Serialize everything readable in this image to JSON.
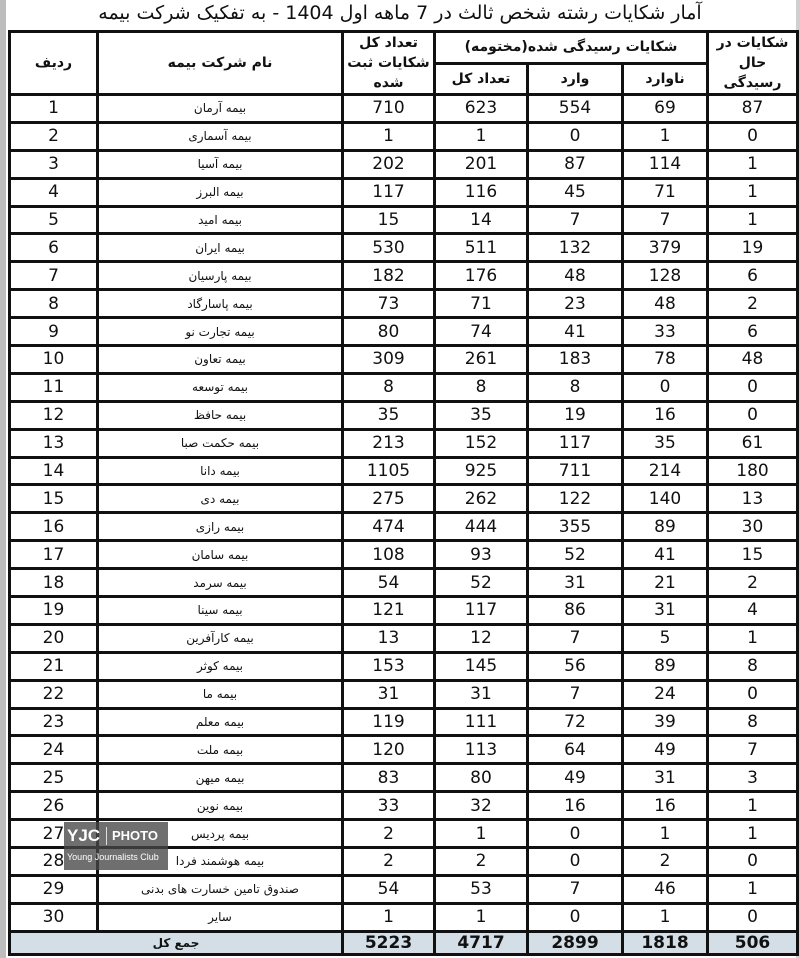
{
  "title": "آمار شکایات رشته شخص ثالث در 7 ماهه اول 1404 - به تفکیک شرکت بیمه",
  "headers": {
    "row_no": "ردیف",
    "company": "نام شرکت بیمه",
    "total": "تعداد کل شکایات ثبت شده",
    "closed_group": "شکایات رسیدگی شده(مختومه)",
    "closed_total": "تعداد کل",
    "valid": "وارد",
    "invalid": "ناوارد",
    "pending": "شکایات در حال رسیدگی"
  },
  "rows": [
    {
      "no": "1",
      "name": "بیمه آرمان",
      "total": "710",
      "closed": "623",
      "valid": "554",
      "invalid": "69",
      "pending": "87"
    },
    {
      "no": "2",
      "name": "بیمه آسماری",
      "total": "1",
      "closed": "1",
      "valid": "0",
      "invalid": "1",
      "pending": "0"
    },
    {
      "no": "3",
      "name": "بیمه آسیا",
      "total": "202",
      "closed": "201",
      "valid": "87",
      "invalid": "114",
      "pending": "1"
    },
    {
      "no": "4",
      "name": "بیمه البرز",
      "total": "117",
      "closed": "116",
      "valid": "45",
      "invalid": "71",
      "pending": "1"
    },
    {
      "no": "5",
      "name": "بیمه امید",
      "total": "15",
      "closed": "14",
      "valid": "7",
      "invalid": "7",
      "pending": "1"
    },
    {
      "no": "6",
      "name": "بیمه ایران",
      "total": "530",
      "closed": "511",
      "valid": "132",
      "invalid": "379",
      "pending": "19"
    },
    {
      "no": "7",
      "name": "بیمه پارسیان",
      "total": "182",
      "closed": "176",
      "valid": "48",
      "invalid": "128",
      "pending": "6"
    },
    {
      "no": "8",
      "name": "بیمه پاسارگاد",
      "total": "73",
      "closed": "71",
      "valid": "23",
      "invalid": "48",
      "pending": "2"
    },
    {
      "no": "9",
      "name": "بیمه تجارت نو",
      "total": "80",
      "closed": "74",
      "valid": "41",
      "invalid": "33",
      "pending": "6"
    },
    {
      "no": "10",
      "name": "بیمه تعاون",
      "total": "309",
      "closed": "261",
      "valid": "183",
      "invalid": "78",
      "pending": "48"
    },
    {
      "no": "11",
      "name": "بیمه توسعه",
      "total": "8",
      "closed": "8",
      "valid": "8",
      "invalid": "0",
      "pending": "0"
    },
    {
      "no": "12",
      "name": "بیمه حافظ",
      "total": "35",
      "closed": "35",
      "valid": "19",
      "invalid": "16",
      "pending": "0"
    },
    {
      "no": "13",
      "name": "بیمه حکمت صبا",
      "total": "213",
      "closed": "152",
      "valid": "117",
      "invalid": "35",
      "pending": "61"
    },
    {
      "no": "14",
      "name": "بیمه دانا",
      "total": "1105",
      "closed": "925",
      "valid": "711",
      "invalid": "214",
      "pending": "180"
    },
    {
      "no": "15",
      "name": "بیمه دی",
      "total": "275",
      "closed": "262",
      "valid": "122",
      "invalid": "140",
      "pending": "13"
    },
    {
      "no": "16",
      "name": "بیمه رازی",
      "total": "474",
      "closed": "444",
      "valid": "355",
      "invalid": "89",
      "pending": "30"
    },
    {
      "no": "17",
      "name": "بیمه سامان",
      "total": "108",
      "closed": "93",
      "valid": "52",
      "invalid": "41",
      "pending": "15"
    },
    {
      "no": "18",
      "name": "بیمه سرمد",
      "total": "54",
      "closed": "52",
      "valid": "31",
      "invalid": "21",
      "pending": "2"
    },
    {
      "no": "19",
      "name": "بیمه سینا",
      "total": "121",
      "closed": "117",
      "valid": "86",
      "invalid": "31",
      "pending": "4"
    },
    {
      "no": "20",
      "name": "بیمه کارآفرین",
      "total": "13",
      "closed": "12",
      "valid": "7",
      "invalid": "5",
      "pending": "1"
    },
    {
      "no": "21",
      "name": "بیمه کوثر",
      "total": "153",
      "closed": "145",
      "valid": "56",
      "invalid": "89",
      "pending": "8"
    },
    {
      "no": "22",
      "name": "بیمه ما",
      "total": "31",
      "closed": "31",
      "valid": "7",
      "invalid": "24",
      "pending": "0"
    },
    {
      "no": "23",
      "name": "بیمه معلم",
      "total": "119",
      "closed": "111",
      "valid": "72",
      "invalid": "39",
      "pending": "8"
    },
    {
      "no": "24",
      "name": "بیمه ملت",
      "total": "120",
      "closed": "113",
      "valid": "64",
      "invalid": "49",
      "pending": "7"
    },
    {
      "no": "25",
      "name": "بیمه میهن",
      "total": "83",
      "closed": "80",
      "valid": "49",
      "invalid": "31",
      "pending": "3"
    },
    {
      "no": "26",
      "name": "بیمه نوین",
      "total": "33",
      "closed": "32",
      "valid": "16",
      "invalid": "16",
      "pending": "1"
    },
    {
      "no": "27",
      "name": "بیمه پردیس",
      "total": "2",
      "closed": "1",
      "valid": "0",
      "invalid": "1",
      "pending": "1"
    },
    {
      "no": "28",
      "name": "بیمه هوشمند فردا",
      "total": "2",
      "closed": "2",
      "valid": "0",
      "invalid": "2",
      "pending": "0"
    },
    {
      "no": "29",
      "name": "صندوق تامین خسارت های بدنی",
      "total": "54",
      "closed": "53",
      "valid": "7",
      "invalid": "46",
      "pending": "1"
    },
    {
      "no": "30",
      "name": "سایر",
      "total": "1",
      "closed": "1",
      "valid": "0",
      "invalid": "1",
      "pending": "0"
    }
  ],
  "totals": {
    "label": "جمع کل",
    "total": "5223",
    "closed": "4717",
    "valid": "2899",
    "invalid": "1818",
    "pending": "506"
  },
  "watermark": {
    "logo": "YJC",
    "photo": "PHOTO",
    "club": "Young Journalists Club"
  }
}
